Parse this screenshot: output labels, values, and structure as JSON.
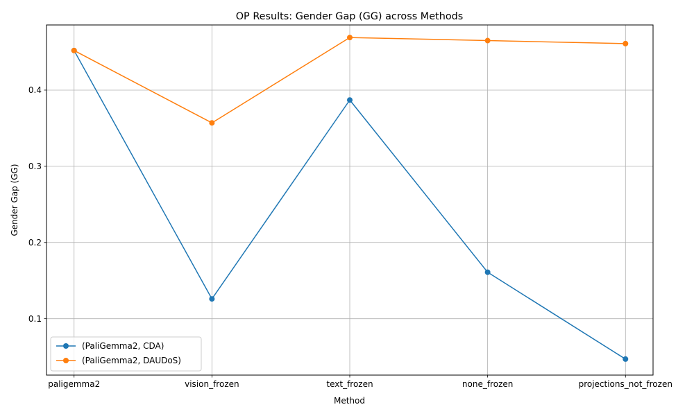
{
  "chart_data": {
    "type": "line",
    "title": "OP Results: Gender Gap (GG) across Methods",
    "xlabel": "Method",
    "ylabel": "Gender Gap (GG)",
    "categories": [
      "paligemma2",
      "vision_frozen",
      "text_frozen",
      "none_frozen",
      "projections_not_frozen"
    ],
    "ylim": [
      0.026,
      0.4855
    ],
    "yticks": [
      0.1,
      0.2,
      0.3,
      0.4
    ],
    "ytick_labels": [
      "0.1",
      "0.2",
      "0.3",
      "0.4"
    ],
    "grid": true,
    "legend_position": "lower-left",
    "series": [
      {
        "name": "(PaliGemma2, CDA)",
        "color": "#1f77b4",
        "values": [
          0.452,
          0.126,
          0.387,
          0.161,
          0.047
        ]
      },
      {
        "name": "(PaliGemma2, DAUDoS)",
        "color": "#ff7f0e",
        "values": [
          0.452,
          0.357,
          0.469,
          0.465,
          0.461
        ]
      }
    ]
  }
}
